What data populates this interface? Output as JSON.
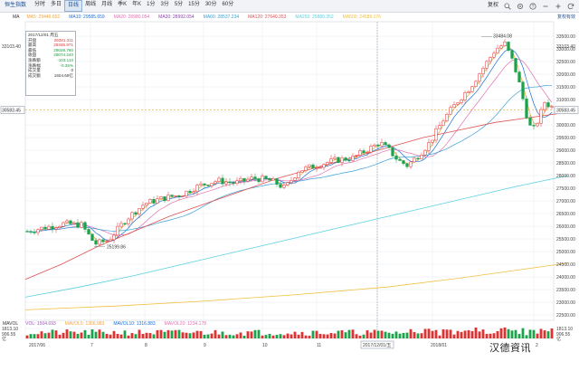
{
  "toolbar": {
    "app_name": "恒生指数",
    "periods": [
      {
        "label": "分时",
        "active": false
      },
      {
        "label": "多日",
        "active": false
      },
      {
        "label": "日线",
        "active": true
      },
      {
        "label": "周线",
        "active": false
      },
      {
        "label": "月线",
        "active": false
      },
      {
        "label": "季K",
        "active": false
      },
      {
        "label": "年K",
        "active": false
      },
      {
        "label": "1分",
        "active": false
      },
      {
        "label": "3分",
        "active": false
      },
      {
        "label": "5分",
        "active": false
      },
      {
        "label": "15分",
        "active": false
      },
      {
        "label": "30分",
        "active": false
      },
      {
        "label": "60分",
        "active": false
      }
    ],
    "right_label": "复权",
    "icons": [
      "search-icon",
      "settings-icon",
      "help-icon",
      "minus-icon",
      "plus-icon",
      "refresh-icon"
    ]
  },
  "ma_legend": {
    "title": "MA",
    "items": [
      {
        "label": "MA5: 29446.652",
        "color": "#f2a43c"
      },
      {
        "label": "MA10: 29585.659",
        "color": "#1a6fd6"
      },
      {
        "label": "MA20: 28980.054",
        "color": "#e36fb1"
      },
      {
        "label": "MA30: 28992.054",
        "color": "#8e44ad"
      },
      {
        "label": "MA60: 28537.234",
        "color": "#3aa0d8"
      },
      {
        "label": "MA120: 27640.353",
        "color": "#e05050"
      },
      {
        "label": "MA250: 25880.352",
        "color": "#5ad0e0"
      },
      {
        "label": "MA500: 24589.176",
        "color": "#f0c040"
      }
    ],
    "right_text": "复权有效"
  },
  "info_box": {
    "date": "2017/12/01 周五",
    "rows": [
      {
        "label": "开盘",
        "value": "29281.311",
        "tone": "up"
      },
      {
        "label": "最高",
        "value": "29346.971",
        "tone": "up"
      },
      {
        "label": "最低",
        "value": "29028.760",
        "tone": "down"
      },
      {
        "label": "收盘",
        "value": "29074.240",
        "tone": "down"
      },
      {
        "label": "涨跌额",
        "value": "-103.110",
        "tone": "down"
      },
      {
        "label": "涨跌幅",
        "value": "-0.35%",
        "tone": "down"
      },
      {
        "label": "成交量",
        "value": "0",
        "tone": "none"
      },
      {
        "label": "成交额",
        "value": "1504.69亿",
        "tone": "none"
      }
    ]
  },
  "price_axis": {
    "min": 22500,
    "max": 33500,
    "ticks": [
      "33500.00",
      "33000.00",
      "32500.00",
      "32000.00",
      "31500.00",
      "31000.00",
      "30500.00",
      "30000.00",
      "29500.00",
      "29000.00",
      "28500.00",
      "28000.00",
      "27500.00",
      "27000.00",
      "26500.00",
      "26000.00",
      "25500.00",
      "25000.00",
      "24500.00",
      "24000.00",
      "23500.00",
      "23000.00",
      "22500.00"
    ],
    "left_tick_label": "33103.40",
    "current_price": 30583.45,
    "current_label": "30583.45",
    "right_top_label": "33103.40",
    "high_annotation": "33484.08",
    "low_annotation": "25199.86"
  },
  "volume_legend": {
    "title": "MAVOL",
    "items": [
      {
        "label": "VOL: 1504.693",
        "color": "#9b59b6"
      },
      {
        "label": "MAVOL5: 1306.983",
        "color": "#f2a43c"
      },
      {
        "label": "MAVOL10: 1316.883",
        "color": "#1a6fd6"
      },
      {
        "label": "MAVOL20: 1234.178",
        "color": "#e36fb1"
      }
    ]
  },
  "volume_axis": {
    "top_label": "1813.10",
    "mid_label": "906.55",
    "unit_label": "亿",
    "left_top_label": "1813.10",
    "left_mid_label": "906.55",
    "left_unit_label": "亿"
  },
  "time_axis": {
    "labels": [
      "2017/06",
      "7",
      "8",
      "9",
      "10",
      "11",
      "2017/12/01/五",
      "2018/01",
      "2"
    ],
    "highlight_label": "2017/12/01/五"
  },
  "brand_text": "汉德資讯",
  "colors": {
    "up": "#e53030",
    "down": "#1aa34a",
    "grid": "#e4e8ee"
  },
  "chart_data": {
    "type": "candlestick",
    "series": [
      {
        "name": "MA5",
        "color": "#f2a43c"
      },
      {
        "name": "MA10",
        "color": "#1a6fd6"
      },
      {
        "name": "MA20",
        "color": "#e36fb1"
      },
      {
        "name": "MA60",
        "color": "#3aa0d8"
      },
      {
        "name": "MA120",
        "color": "#e05050"
      },
      {
        "name": "MA250",
        "color": "#5ad0e0"
      },
      {
        "name": "MA500",
        "color": "#f0c040"
      }
    ],
    "ylim": [
      22500,
      33500
    ],
    "ma120_path": [
      [
        0,
        23900
      ],
      [
        40,
        24500
      ],
      [
        80,
        25200
      ],
      [
        120,
        25800
      ],
      [
        160,
        26400
      ],
      [
        200,
        26900
      ],
      [
        240,
        27400
      ],
      [
        280,
        27900
      ],
      [
        320,
        28300
      ],
      [
        360,
        28700
      ],
      [
        400,
        29100
      ],
      [
        440,
        29500
      ],
      [
        480,
        29800
      ],
      [
        520,
        30100
      ],
      [
        560,
        30300
      ],
      [
        600,
        30500
      ]
    ],
    "ma250_path": [
      [
        0,
        23200
      ],
      [
        60,
        23600
      ],
      [
        120,
        24050
      ],
      [
        180,
        24550
      ],
      [
        240,
        25050
      ],
      [
        300,
        25550
      ],
      [
        360,
        26050
      ],
      [
        420,
        26550
      ],
      [
        480,
        27050
      ],
      [
        540,
        27550
      ],
      [
        600,
        28000
      ]
    ],
    "ma500_path": [
      [
        0,
        22700
      ],
      [
        100,
        22850
      ],
      [
        200,
        23050
      ],
      [
        300,
        23300
      ],
      [
        400,
        23600
      ],
      [
        480,
        23950
      ],
      [
        540,
        24250
      ],
      [
        600,
        24550
      ]
    ]
  }
}
